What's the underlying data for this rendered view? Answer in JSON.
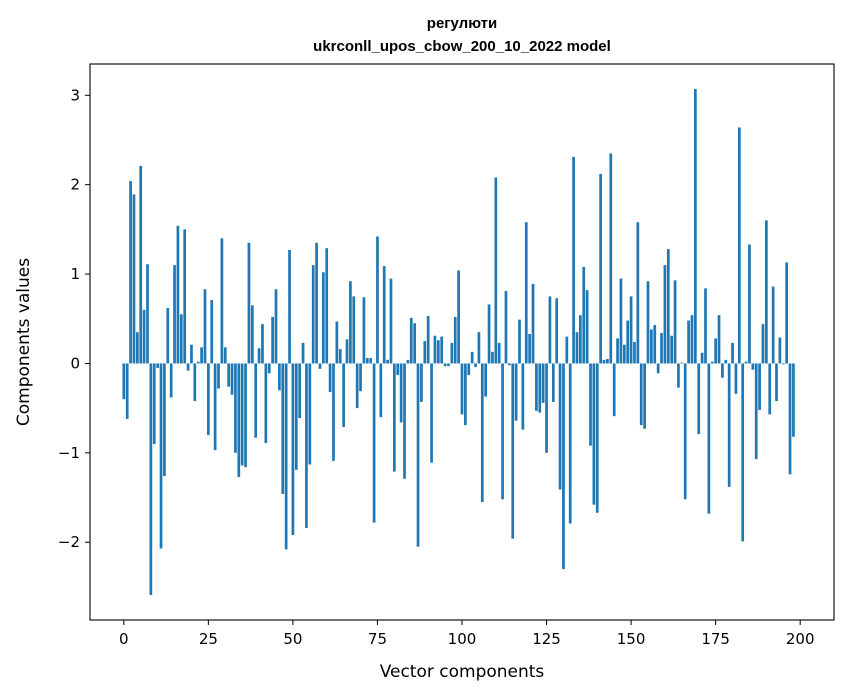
{
  "chart_data": {
    "type": "bar",
    "title_line1": "регулюти",
    "title_line2": "ukrconll_upos_cbow_200_10_2022 model",
    "xlabel": "Vector components",
    "ylabel": "Components values",
    "xlim": [
      -10,
      210
    ],
    "ylim": [
      -2.87,
      3.35
    ],
    "x_ticks": [
      0,
      25,
      50,
      75,
      100,
      125,
      150,
      175,
      200
    ],
    "y_ticks": [
      -2,
      -1,
      0,
      1,
      2,
      3
    ],
    "y_tick_labels": [
      "−2",
      "−1",
      "0",
      "1",
      "2",
      "3"
    ],
    "bar_color": "#1f77b4",
    "grid": false,
    "values": [
      -0.4,
      -0.62,
      2.04,
      1.89,
      0.35,
      2.21,
      0.6,
      1.11,
      -2.59,
      -0.9,
      -0.05,
      -2.07,
      -1.26,
      0.62,
      -0.38,
      1.1,
      1.54,
      0.55,
      1.5,
      -0.08,
      0.21,
      -0.42,
      0.02,
      0.18,
      0.83,
      -0.8,
      0.71,
      -0.97,
      -0.28,
      1.4,
      0.18,
      -0.26,
      -0.35,
      -1.0,
      -1.27,
      -1.14,
      -1.16,
      1.35,
      0.65,
      -0.83,
      0.17,
      0.44,
      -0.89,
      -0.11,
      0.52,
      0.83,
      -0.3,
      -1.46,
      -2.08,
      1.27,
      -1.92,
      -1.19,
      -0.61,
      0.23,
      -1.84,
      -1.13,
      1.1,
      1.35,
      -0.06,
      1.02,
      1.29,
      -0.32,
      -1.09,
      0.47,
      0.16,
      -0.71,
      0.27,
      0.92,
      0.75,
      -0.5,
      -0.31,
      0.74,
      0.06,
      0.06,
      -1.78,
      1.42,
      -0.6,
      1.09,
      0.04,
      0.95,
      -1.21,
      -0.13,
      -0.66,
      -1.29,
      0.04,
      0.51,
      0.45,
      -2.05,
      -0.43,
      0.25,
      0.53,
      -1.11,
      0.31,
      0.26,
      0.3,
      -0.03,
      -0.03,
      0.23,
      0.52,
      1.04,
      -0.57,
      -0.69,
      -0.13,
      0.13,
      -0.04,
      0.35,
      -1.55,
      -0.37,
      0.66,
      0.13,
      2.08,
      0.23,
      -1.52,
      0.81,
      -0.02,
      -1.96,
      -0.64,
      0.49,
      -0.74,
      1.58,
      0.33,
      0.89,
      -0.53,
      -0.55,
      -0.44,
      -1.0,
      0.75,
      -0.43,
      0.73,
      -1.41,
      -2.3,
      0.3,
      -1.79,
      2.31,
      0.35,
      0.54,
      1.08,
      0.82,
      -0.92,
      -1.58,
      -1.67,
      2.12,
      0.04,
      0.05,
      2.35,
      -0.59,
      0.28,
      0.95,
      0.21,
      0.48,
      0.75,
      0.24,
      1.58,
      -0.69,
      -0.73,
      0.92,
      0.38,
      0.43,
      -0.11,
      0.34,
      1.1,
      1.28,
      0.31,
      0.93,
      -0.27,
      0.01,
      -1.52,
      0.48,
      0.54,
      3.07,
      -0.79,
      0.12,
      0.84,
      -1.68,
      0.02,
      0.28,
      0.54,
      -0.16,
      0.04,
      -1.38,
      0.23,
      -0.34,
      2.64,
      -1.99,
      0.02,
      1.33,
      -0.07,
      -1.07,
      -0.52,
      0.44,
      1.6,
      -0.57,
      0.86,
      -0.42,
      0.29,
      -0.01,
      1.13,
      -1.24,
      -0.82
    ]
  }
}
